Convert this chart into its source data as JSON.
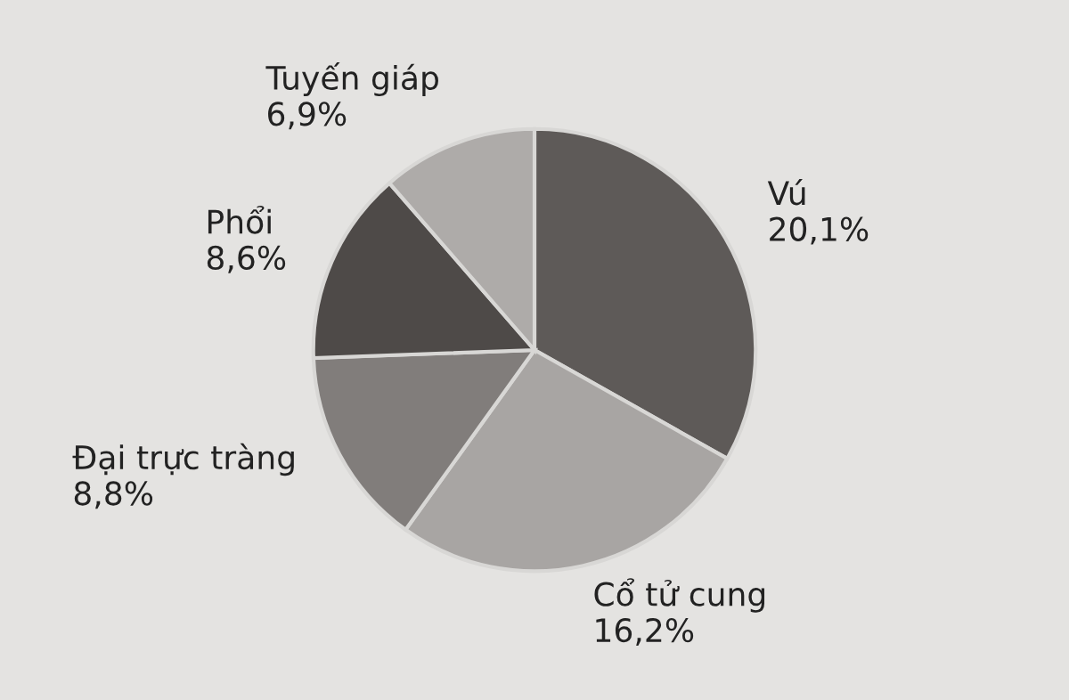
{
  "chart_data": {
    "type": "pie",
    "categories": [
      "Vú",
      "Cổ tử cung",
      "Đại trực tràng",
      "Phổi",
      "Tuyến giáp"
    ],
    "values": [
      20.1,
      16.2,
      8.8,
      8.6,
      6.9
    ],
    "value_labels": [
      "20,1%",
      "16,2%",
      "8,8%",
      "8,6%",
      "6,9%"
    ],
    "colors": [
      "#5e5a58",
      "#a8a5a3",
      "#817d7b",
      "#4e4a48",
      "#aeaba9"
    ]
  }
}
